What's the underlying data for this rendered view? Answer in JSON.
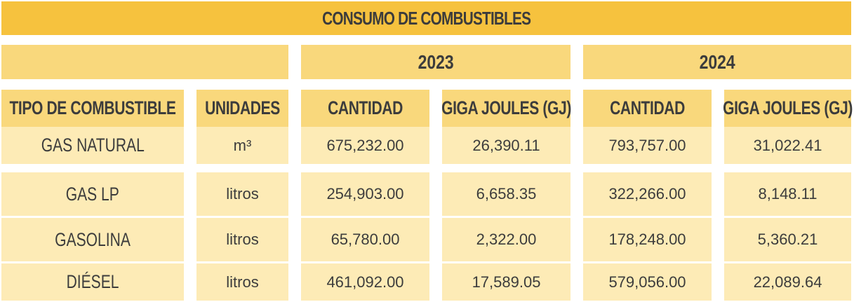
{
  "title": "CONSUMO DE COMBUSTIBLES",
  "years": [
    "2023",
    "2024"
  ],
  "headers": {
    "tipo": "TIPO DE COMBUSTIBLE",
    "unidades": "UNIDADES",
    "cantidad_2023": "CANTIDAD",
    "gj_2023": "GIGA JOULES (GJ)",
    "cantidad_2024": "CANTIDAD",
    "gj_2024": "GIGA JOULES (GJ)"
  },
  "rows": [
    {
      "tipo": "GAS NATURAL",
      "unidades": "m³",
      "cantidad_2023": "675,232.00",
      "gj_2023": "26,390.11",
      "cantidad_2024": "793,757.00",
      "gj_2024": "31,022.41"
    },
    {
      "tipo": "GAS LP",
      "unidades": "litros",
      "cantidad_2023": "254,903.00",
      "gj_2023": "6,658.35",
      "cantidad_2024": "322,266.00",
      "gj_2024": "8,148.11"
    },
    {
      "tipo": "GASOLINA",
      "unidades": "litros",
      "cantidad_2023": "65,780.00",
      "gj_2023": "2,322.00",
      "cantidad_2024": "178,248.00",
      "gj_2024": "5,360.21"
    },
    {
      "tipo": "DIÉSEL",
      "unidades": "litros",
      "cantidad_2023": "461,092.00",
      "gj_2023": "17,589.05",
      "cantidad_2024": "579,056.00",
      "gj_2024": "22,089.64"
    }
  ],
  "colors": {
    "title_bg": "#f6c23e",
    "header_bg": "#f9d87c",
    "row_bg": "#fdebb6",
    "text": "#3c3c3c"
  }
}
